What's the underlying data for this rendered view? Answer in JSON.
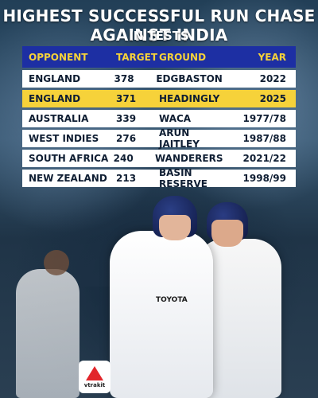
{
  "header": {
    "title": "HIGHEST SUCCESSFUL RUN CHASE AGAINST INDIA",
    "subtitle": "IN TESTS"
  },
  "table": {
    "columns": [
      "OPPONENT",
      "TARGET",
      "GROUND",
      "YEAR"
    ],
    "rows": [
      {
        "opponent": "ENGLAND",
        "target": "378",
        "ground": "EDGBASTON",
        "year": "2022"
      },
      {
        "opponent": "ENGLAND",
        "target": "371",
        "ground": "HEADINGLY",
        "year": "2025"
      },
      {
        "opponent": "AUSTRALIA",
        "target": "339",
        "ground": "WACA",
        "year": "1977/78"
      },
      {
        "opponent": "WEST INDIES",
        "target": "276",
        "ground": "ARUN JAITLEY",
        "year": "1987/88"
      },
      {
        "opponent": "SOUTH AFRICA",
        "target": "240",
        "ground": "WANDERERS",
        "year": "2021/22"
      },
      {
        "opponent": "NEW ZEALAND",
        "target": "213",
        "ground": "BASIN RESERVE",
        "year": "1998/99"
      }
    ]
  },
  "photo": {
    "sponsor_text": "TOYOTA"
  },
  "brand": {
    "logo_text": "vtrakit"
  },
  "colors": {
    "header_bg": "#1d2fa3",
    "header_text": "#f6d23a",
    "highlight_row": "#f6d23a",
    "row_bg": "#ffffff"
  }
}
